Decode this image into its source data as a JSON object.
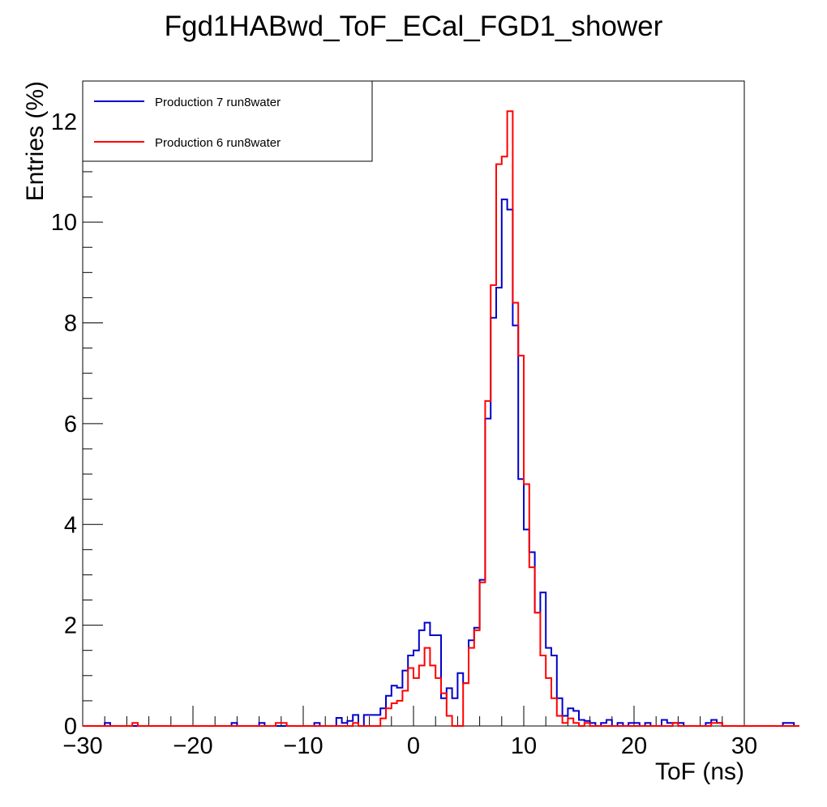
{
  "chart_data": {
    "type": "line",
    "title": "Fgd1HABwd_ToF_ECal_FGD1_shower",
    "xlabel": "ToF (ns)",
    "ylabel": "Entries (%)",
    "xlim": [
      -30,
      30
    ],
    "ylim": [
      0,
      12.8
    ],
    "x_ticks": [
      -30,
      -20,
      -10,
      0,
      10,
      20,
      30
    ],
    "x_tick_labels": [
      "−30",
      "−20",
      "−10",
      "0",
      "10",
      "20",
      "30"
    ],
    "y_ticks": [
      0,
      2,
      4,
      6,
      8,
      10,
      12
    ],
    "y_tick_labels": [
      "0",
      "2",
      "4",
      "6",
      "8",
      "10",
      "12"
    ],
    "grid": false,
    "legend_position": "top-left",
    "bin_edges_start": -30,
    "bin_width": 0.5,
    "series": [
      {
        "name": "Production 7 run8water",
        "color": "#0000cc",
        "values": [
          0,
          0,
          0,
          0,
          0.06,
          0,
          0,
          0,
          0,
          0,
          0,
          0,
          0,
          0,
          0,
          0,
          0,
          0,
          0,
          0,
          0,
          0,
          0,
          0,
          0,
          0,
          0,
          0.06,
          0,
          0,
          0,
          0,
          0.06,
          0,
          0,
          0,
          0,
          0,
          0,
          0,
          0,
          0,
          0.06,
          0,
          0,
          0,
          0.16,
          0.06,
          0.1,
          0.22,
          0,
          0.22,
          0.22,
          0.22,
          0.35,
          0.6,
          0.8,
          0.76,
          1.1,
          1.4,
          1.5,
          1.9,
          2.05,
          1.8,
          1.8,
          0.55,
          0.75,
          0.55,
          1.05,
          0.85,
          1.7,
          1.95,
          2.9,
          6.1,
          8.1,
          8.7,
          10.45,
          10.25,
          7.95,
          4.9,
          3.9,
          3.45,
          2.25,
          2.65,
          1.55,
          1.4,
          0.55,
          0.2,
          0.35,
          0.3,
          0.12,
          0.1,
          0.06,
          0,
          0.06,
          0.12,
          0,
          0.06,
          0,
          0.06,
          0.06,
          0,
          0.06,
          0,
          0,
          0.12,
          0.06,
          0.06,
          0.06,
          0,
          0,
          0,
          0,
          0.06,
          0.12,
          0.06,
          0,
          0,
          0,
          0,
          0,
          0,
          0,
          0,
          0,
          0,
          0,
          0.06,
          0.06,
          0
        ]
      },
      {
        "name": "Production 6 run8water",
        "color": "#ff0000",
        "values": [
          0,
          0,
          0,
          0,
          0,
          0,
          0,
          0,
          0,
          0.06,
          0,
          0,
          0,
          0,
          0,
          0,
          0,
          0,
          0,
          0,
          0,
          0,
          0,
          0,
          0,
          0,
          0,
          0,
          0,
          0,
          0,
          0,
          0,
          0,
          0,
          0.06,
          0.06,
          0,
          0,
          0,
          0,
          0,
          0,
          0,
          0,
          0,
          0,
          0,
          0,
          0.06,
          0,
          0,
          0,
          0,
          0.15,
          0.35,
          0.45,
          0.5,
          0.7,
          1.15,
          0.95,
          1.2,
          1.55,
          1.2,
          0.95,
          0.65,
          0.2,
          0,
          0,
          0.85,
          1.55,
          1.9,
          2.85,
          6.45,
          8.75,
          11.15,
          11.3,
          12.2,
          8.4,
          7.35,
          4.8,
          3.15,
          2.25,
          1.4,
          0.95,
          0.55,
          0.2,
          0.06,
          0.15,
          0.06,
          0,
          0.06,
          0,
          0,
          0,
          0,
          0,
          0,
          0,
          0,
          0,
          0,
          0,
          0,
          0,
          0,
          0,
          0.06,
          0,
          0,
          0,
          0,
          0,
          0,
          0.06,
          0.06,
          0,
          0,
          0,
          0,
          0,
          0,
          0,
          0,
          0,
          0,
          0,
          0,
          0,
          0
        ]
      }
    ]
  }
}
